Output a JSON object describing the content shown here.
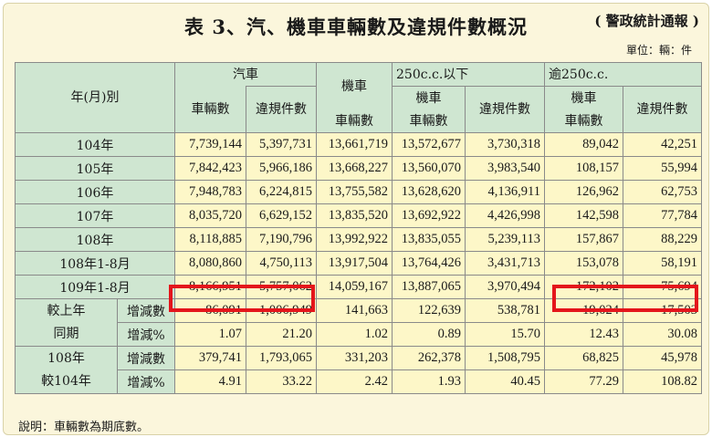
{
  "title": "表 3、汽、機車車輛數及違規件數概況",
  "source": "( 警政統計通報 )",
  "unit": "單位：輛：件",
  "note": "說明：車輛數為期底數。",
  "header": {
    "period": "年(月)別",
    "car": "汽車",
    "vehicles": "車輛數",
    "violations": "違規件數",
    "motorcycle": "機車",
    "under250": "250c.c.以下",
    "over250": "逾250c.c.",
    "moto": "機車"
  },
  "rows": [
    {
      "label": "104年",
      "v": [
        "7,739,144",
        "5,397,731",
        "13,661,719",
        "13,572,677",
        "3,730,318",
        "89,042",
        "42,251"
      ]
    },
    {
      "label": "105年",
      "v": [
        "7,842,423",
        "5,966,186",
        "13,668,227",
        "13,560,070",
        "3,983,540",
        "108,157",
        "55,994"
      ]
    },
    {
      "label": "106年",
      "v": [
        "7,948,783",
        "6,224,815",
        "13,755,582",
        "13,628,620",
        "4,136,911",
        "126,962",
        "62,753"
      ]
    },
    {
      "label": "107年",
      "v": [
        "8,035,720",
        "6,629,152",
        "13,835,520",
        "13,692,922",
        "4,426,998",
        "142,598",
        "77,784"
      ]
    },
    {
      "label": "108年",
      "v": [
        "8,118,885",
        "7,190,796",
        "13,992,922",
        "13,835,055",
        "5,239,113",
        "157,867",
        "88,229"
      ]
    },
    {
      "label": "108年1-8月",
      "v": [
        "8,080,860",
        "4,750,113",
        "13,917,504",
        "13,764,426",
        "3,431,713",
        "153,078",
        "58,191"
      ]
    },
    {
      "label": "109年1-8月",
      "v": [
        "8,166,951",
        "5,757,062",
        "14,059,167",
        "13,887,065",
        "3,970,494",
        "172,102",
        "75,694"
      ]
    }
  ],
  "compare": [
    {
      "group1": "較上年",
      "group2": "同期",
      "rows": [
        {
          "label": "增減數",
          "v": [
            "86,091",
            "1,006,949",
            "141,663",
            "122,639",
            "538,781",
            "19,024",
            "17,503"
          ]
        },
        {
          "label": "增減%",
          "v": [
            "1.07",
            "21.20",
            "1.02",
            "0.89",
            "15.70",
            "12.43",
            "30.08"
          ]
        }
      ]
    },
    {
      "group1": "108年",
      "group2": "較104年",
      "rows": [
        {
          "label": "增減數",
          "v": [
            "379,741",
            "1,793,065",
            "331,203",
            "262,378",
            "1,508,795",
            "68,825",
            "45,978"
          ]
        },
        {
          "label": "增減%",
          "v": [
            "4.91",
            "33.22",
            "2.42",
            "1.93",
            "40.45",
            "77.29",
            "108.82"
          ]
        }
      ]
    }
  ],
  "highlight_color": "#e4151b"
}
